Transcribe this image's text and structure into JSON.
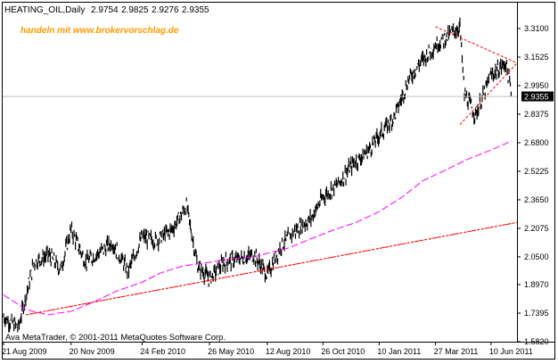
{
  "chart_data": {
    "type": "line",
    "symbol": "HEATING_OIL,Daily",
    "ohlc": [
      "2.9754",
      "2.9825",
      "2.9276",
      "2.9355"
    ],
    "watermark": "handeln mit www.brokervorschlag.de",
    "copyright": "Ava MetaTrader, © 2001-2011 MetaQuotes Software Corp.",
    "current_price": "2.9355",
    "y_ticks": [
      "3.3100",
      "3.1525",
      "2.9950",
      "2.8375",
      "2.6800",
      "2.5225",
      "2.3650",
      "2.2075",
      "2.0500",
      "1.8970",
      "1.7395",
      "1.5820"
    ],
    "ylim": [
      1.582,
      3.31
    ],
    "x_ticks": [
      "21 Aug 2009",
      "20 Nov 2009",
      "24 Feb 2010",
      "26 May 2010",
      "12 Aug 2010",
      "26 Oct 2010",
      "10 Jan 2011",
      "27 Mar 2011",
      "10 Jun 2011"
    ],
    "xlim": [
      "2009-08-21",
      "2011-07-15"
    ],
    "grid": false,
    "colors": {
      "price": "#000000",
      "ma_fast": "#ff00ff",
      "ma_slow": "#ff0000",
      "trendline": "#ff0000",
      "price_line": "#c0c0c0",
      "current_label_bg": "#000000"
    },
    "series": [
      {
        "type": "line",
        "x": [
          "2009-08-21",
          "2009-09-10",
          "2009-10-01",
          "2009-10-21",
          "2009-11-06",
          "2009-11-20",
          "2009-12-10",
          "2009-12-30",
          "2010-01-15",
          "2010-02-05",
          "2010-02-24",
          "2010-03-15",
          "2010-04-05",
          "2010-04-25",
          "2010-05-10",
          "2010-05-26",
          "2010-06-15",
          "2010-07-05",
          "2010-07-25",
          "2010-08-12",
          "2010-08-30",
          "2010-09-20",
          "2010-10-10",
          "2010-10-26",
          "2010-11-15",
          "2010-12-05",
          "2010-12-25",
          "2011-01-10",
          "2011-01-30",
          "2011-02-20",
          "2011-03-10",
          "2011-03-27",
          "2011-04-10",
          "2011-04-29",
          "2011-05-05",
          "2011-05-20",
          "2011-06-10",
          "2011-06-30",
          "2011-07-08"
        ],
        "y": [
          1.72,
          1.66,
          2.02,
          2.06,
          1.98,
          2.2,
          2.02,
          2.08,
          2.13,
          1.97,
          2.16,
          2.14,
          2.2,
          2.33,
          2.0,
          1.93,
          2.02,
          2.04,
          2.06,
          1.95,
          2.11,
          2.2,
          2.26,
          2.38,
          2.45,
          2.56,
          2.63,
          2.72,
          2.82,
          3.04,
          3.14,
          3.22,
          3.26,
          3.32,
          2.95,
          2.83,
          3.05,
          3.12,
          2.94
        ]
      },
      {
        "type": "line",
        "x": [
          "2009-08-21",
          "2009-09-20",
          "2009-10-20",
          "2009-11-20",
          "2009-12-20",
          "2010-01-20",
          "2010-02-24",
          "2010-03-20",
          "2010-04-20",
          "2010-05-26",
          "2010-06-25",
          "2010-07-25",
          "2010-08-12",
          "2010-09-10",
          "2010-10-10",
          "2010-11-10",
          "2010-12-10",
          "2011-01-10",
          "2011-02-10",
          "2011-03-10",
          "2011-04-10",
          "2011-05-10",
          "2011-06-10",
          "2011-07-08"
        ],
        "y": [
          1.84,
          1.76,
          1.73,
          1.75,
          1.8,
          1.86,
          1.91,
          1.96,
          2.0,
          2.02,
          2.04,
          2.05,
          2.07,
          2.1,
          2.15,
          2.2,
          2.24,
          2.3,
          2.38,
          2.47,
          2.53,
          2.59,
          2.64,
          2.69
        ]
      },
      {
        "type": "line",
        "x": [
          "2009-09-20",
          "2010-05-26",
          "2011-07-15"
        ],
        "y": [
          1.73,
          1.92,
          2.24
        ]
      }
    ],
    "trendlines": [
      {
        "x": [
          "2009-09-20",
          "2011-07-15"
        ],
        "y": [
          1.73,
          2.24
        ]
      },
      {
        "x": [
          "2011-03-27",
          "2011-07-15"
        ],
        "y": [
          3.32,
          3.12
        ]
      },
      {
        "x": [
          "2011-04-29",
          "2011-07-15"
        ],
        "y": [
          2.78,
          3.12
        ]
      }
    ]
  }
}
